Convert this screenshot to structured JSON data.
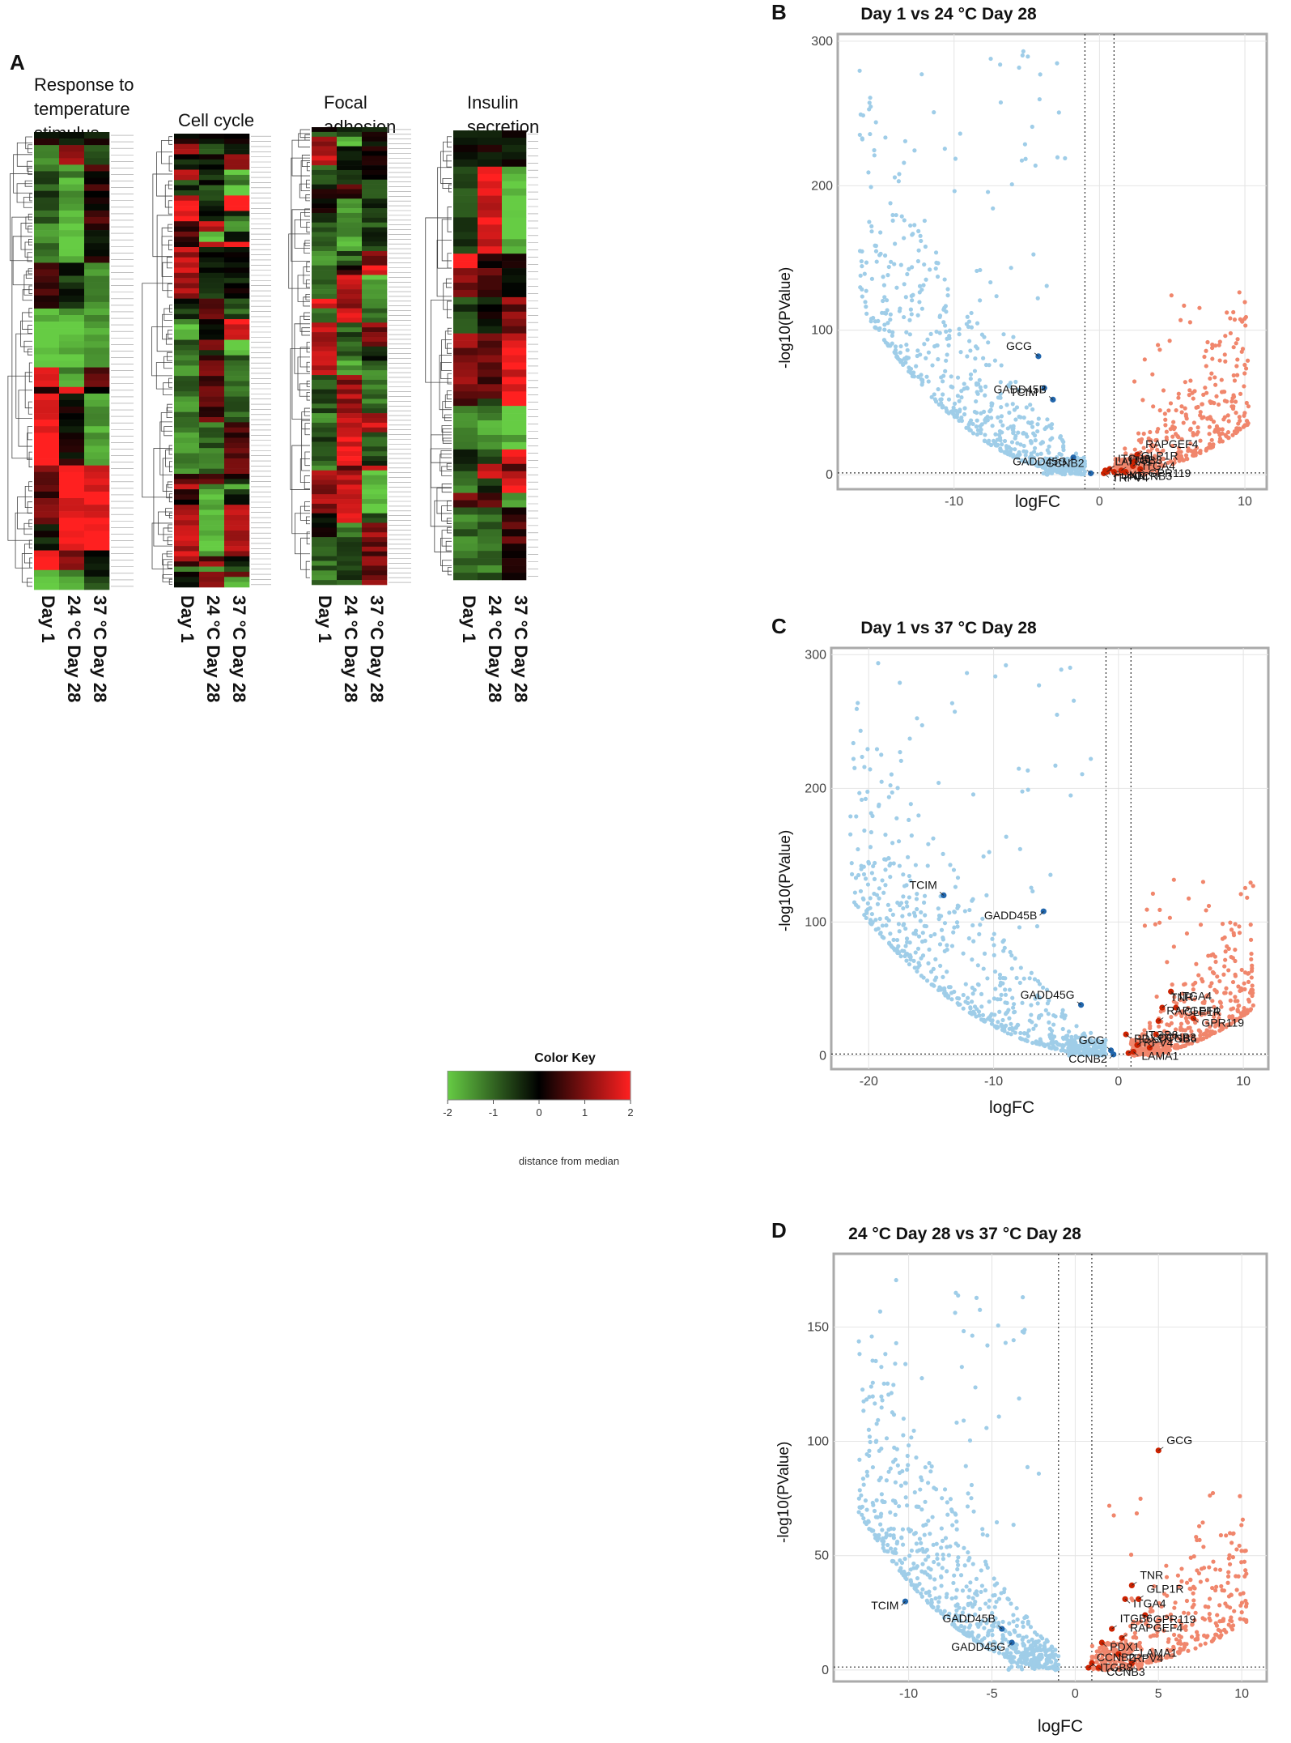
{
  "panels": {
    "a": "A",
    "b": "B",
    "c": "C",
    "d": "D"
  },
  "heatmap": {
    "col_labels": [
      "Day 1",
      "24 °C Day 28",
      "37 °C Day 28"
    ],
    "groups": [
      {
        "title": [
          "Response to",
          "temperature",
          "stimulus"
        ],
        "rows": 70,
        "seed": 11
      },
      {
        "title": [
          "Cell cycle"
        ],
        "rows": 88,
        "seed": 23
      },
      {
        "title": [
          "Focal",
          "adhesion"
        ],
        "rows": 96,
        "seed": 37
      },
      {
        "title": [
          "Insulin",
          "secretion"
        ],
        "rows": 62,
        "seed": 53
      }
    ]
  },
  "color_key": {
    "title": "Color Key",
    "ticks": [
      "-2",
      "-1",
      "0",
      "1",
      "2"
    ],
    "label": "distance from median",
    "colors": {
      "low": "#66cc44",
      "mid": "#000000",
      "high": "#ff2020"
    }
  },
  "chart_data": [
    {
      "type": "scatter",
      "title": "Day 1 vs 24 °C Day 28",
      "xlabel": "logFC",
      "ylabel": "-log10(PValue)",
      "xlim": [
        -18,
        11.5
      ],
      "ylim": [
        -10,
        305
      ],
      "xticks": [
        -10,
        0,
        10
      ],
      "yticks": [
        0,
        100,
        200,
        300
      ],
      "thresholds_x": [
        -1,
        1
      ],
      "threshold_y": 1.3,
      "colors": {
        "down": "#9fcde8",
        "up": "#f0866c",
        "down_gene": "#2166ac",
        "up_gene": "#cc2200"
      },
      "cloud_seed": 101,
      "genes": [
        {
          "label": "GCG",
          "x": -4.2,
          "y": 82,
          "dir": "down"
        },
        {
          "label": "TCIM",
          "x": -3.8,
          "y": 60,
          "dir": "down"
        },
        {
          "label": "GADD45B",
          "x": -3.2,
          "y": 52,
          "dir": "down"
        },
        {
          "label": "GADD45G",
          "x": -1.8,
          "y": 12,
          "dir": "down"
        },
        {
          "label": "ITGB6",
          "x": 0.7,
          "y": 4,
          "dir": "up"
        },
        {
          "label": "PDX1",
          "x": 0.4,
          "y": 3,
          "dir": "up"
        },
        {
          "label": "CCNB2",
          "x": -0.6,
          "y": 1,
          "dir": "down"
        },
        {
          "label": "TRPV4",
          "x": 0.3,
          "y": 1,
          "dir": "up"
        },
        {
          "label": "LAMA1",
          "x": 0.5,
          "y": 2,
          "dir": "up"
        },
        {
          "label": "TNR",
          "x": 1.0,
          "y": 2,
          "dir": "up"
        },
        {
          "label": "RAPGEF4",
          "x": 2.6,
          "y": 14,
          "dir": "up"
        },
        {
          "label": "ITGA4",
          "x": 2.4,
          "y": 9,
          "dir": "up"
        },
        {
          "label": "GLP1R",
          "x": 2.3,
          "y": 6,
          "dir": "up"
        },
        {
          "label": "GPR119",
          "x": 2.8,
          "y": 4,
          "dir": "up"
        },
        {
          "label": "ITGB8",
          "x": 1.5,
          "y": 3,
          "dir": "up"
        },
        {
          "label": "CCNB3",
          "x": 1.8,
          "y": 2,
          "dir": "up"
        }
      ]
    },
    {
      "type": "scatter",
      "title": "Day 1 vs 37 °C Day 28",
      "xlabel": "logFC",
      "ylabel": "-log10(PValue)",
      "xlim": [
        -23,
        12
      ],
      "ylim": [
        -10,
        305
      ],
      "xticks": [
        -20,
        -10,
        0,
        10
      ],
      "yticks": [
        0,
        100,
        200,
        300
      ],
      "thresholds_x": [
        -1,
        1
      ],
      "threshold_y": 1.3,
      "colors": {
        "down": "#9fcde8",
        "up": "#f0866c",
        "down_gene": "#2166ac",
        "up_gene": "#cc2200"
      },
      "cloud_seed": 202,
      "genes": [
        {
          "label": "TCIM",
          "x": -14,
          "y": 120,
          "dir": "down"
        },
        {
          "label": "GADD45B",
          "x": -6,
          "y": 108,
          "dir": "down"
        },
        {
          "label": "GADD45G",
          "x": -3,
          "y": 38,
          "dir": "down"
        },
        {
          "label": "PDX1",
          "x": 0.6,
          "y": 16,
          "dir": "up"
        },
        {
          "label": "GCG",
          "x": -0.6,
          "y": 4,
          "dir": "down"
        },
        {
          "label": "CCNB2",
          "x": -0.4,
          "y": 1,
          "dir": "down"
        },
        {
          "label": "TRPV4",
          "x": 0.8,
          "y": 2,
          "dir": "up"
        },
        {
          "label": "LAMA1",
          "x": 1.2,
          "y": 3,
          "dir": "up"
        },
        {
          "label": "ITGB8",
          "x": 1.5,
          "y": 8,
          "dir": "up"
        },
        {
          "label": "ITGA4",
          "x": 4.2,
          "y": 48,
          "dir": "up"
        },
        {
          "label": "TNR",
          "x": 3.5,
          "y": 36,
          "dir": "up"
        },
        {
          "label": "GLP1R",
          "x": 4.6,
          "y": 36,
          "dir": "up"
        },
        {
          "label": "RAPGEF4",
          "x": 3.2,
          "y": 26,
          "dir": "up"
        },
        {
          "label": "ITGB6",
          "x": 3.0,
          "y": 16,
          "dir": "up"
        },
        {
          "label": "CCNB3",
          "x": 2.5,
          "y": 6,
          "dir": "up"
        },
        {
          "label": "GPR119",
          "x": 6.0,
          "y": 28,
          "dir": "up"
        }
      ]
    },
    {
      "type": "scatter",
      "title": "24 °C Day 28 vs 37 °C Day 28",
      "xlabel": "logFC",
      "ylabel": "-log10(PValue)",
      "xlim": [
        -14.5,
        11.5
      ],
      "ylim": [
        -5,
        182
      ],
      "xticks": [
        -10,
        -5,
        0,
        5,
        10
      ],
      "yticks": [
        0,
        50,
        100,
        150
      ],
      "thresholds_x": [
        -1,
        1
      ],
      "threshold_y": 1.3,
      "colors": {
        "down": "#9fcde8",
        "up": "#f0866c",
        "down_gene": "#2166ac",
        "up_gene": "#cc2200"
      },
      "cloud_seed": 303,
      "genes": [
        {
          "label": "GCG",
          "x": 5.0,
          "y": 96,
          "dir": "up"
        },
        {
          "label": "TCIM",
          "x": -10.2,
          "y": 30,
          "dir": "down"
        },
        {
          "label": "GADD45B",
          "x": -4.4,
          "y": 18,
          "dir": "down"
        },
        {
          "label": "GADD45G",
          "x": -3.8,
          "y": 12,
          "dir": "down"
        },
        {
          "label": "TNR",
          "x": 3.4,
          "y": 37,
          "dir": "up"
        },
        {
          "label": "ITGA4",
          "x": 3.0,
          "y": 31,
          "dir": "up"
        },
        {
          "label": "GLP1R",
          "x": 3.8,
          "y": 31,
          "dir": "up"
        },
        {
          "label": "GPR119",
          "x": 4.2,
          "y": 24,
          "dir": "up"
        },
        {
          "label": "ITGB6",
          "x": 2.2,
          "y": 18,
          "dir": "up"
        },
        {
          "label": "PDX1",
          "x": 1.6,
          "y": 12,
          "dir": "up"
        },
        {
          "label": "RAPGEF4",
          "x": 2.8,
          "y": 14,
          "dir": "up"
        },
        {
          "label": "TRPV4",
          "x": 2.6,
          "y": 7,
          "dir": "up"
        },
        {
          "label": "LAMA1",
          "x": 3.4,
          "y": 3,
          "dir": "up"
        },
        {
          "label": "ITGB8",
          "x": 1.0,
          "y": 3,
          "dir": "up"
        },
        {
          "label": "CCNB2",
          "x": 0.8,
          "y": 1,
          "dir": "up"
        },
        {
          "label": "CCNB3",
          "x": 1.4,
          "y": 1,
          "dir": "up"
        }
      ]
    }
  ]
}
